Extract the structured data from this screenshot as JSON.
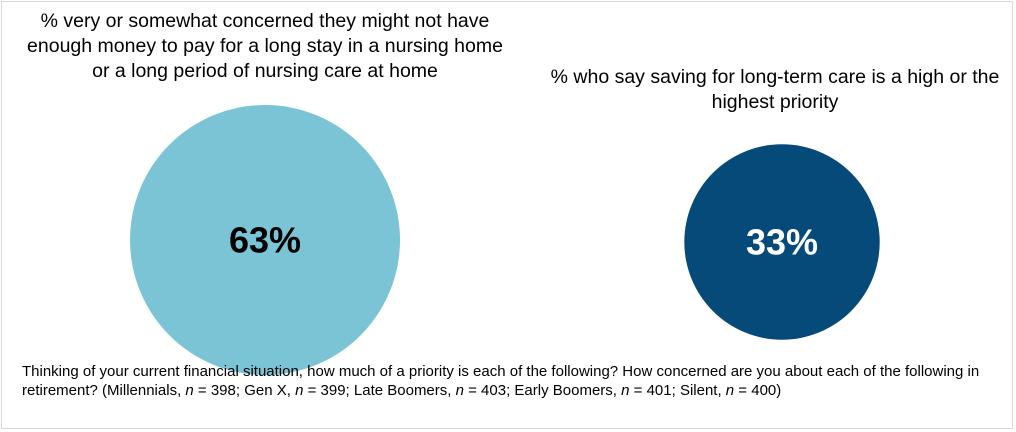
{
  "chart_data": [
    {
      "type": "pie",
      "title": "% very or somewhat concerned they might not have enough money to pay for a long stay in a nursing home or a long period of nursing care at home",
      "value": 63,
      "value_label": "63%",
      "color": "#7ac4d6",
      "label_color": "#000000"
    },
    {
      "type": "pie",
      "title": "% who say saving for long-term care is a high or the highest priority",
      "value": 33,
      "value_label": "33%",
      "color": "#064a7a",
      "label_color": "#ffffff"
    }
  ],
  "footnote": {
    "question": "Thinking of your current financial situation, how much of a priority is each of the following? How concerned are you about each of the following in retirement? ",
    "groups": [
      {
        "prefix": "(Millennials, ",
        "n_symbol": "n",
        "n_value": " = 398; "
      },
      {
        "prefix": "Gen X, ",
        "n_symbol": "n",
        "n_value": " = 399; "
      },
      {
        "prefix": "Late Boomers, ",
        "n_symbol": "n",
        "n_value": " = 403; "
      },
      {
        "prefix": "Early Boomers, ",
        "n_symbol": "n",
        "n_value": " = 401; "
      },
      {
        "prefix": "Silent, ",
        "n_symbol": "n",
        "n_value": " = 400)"
      }
    ]
  }
}
